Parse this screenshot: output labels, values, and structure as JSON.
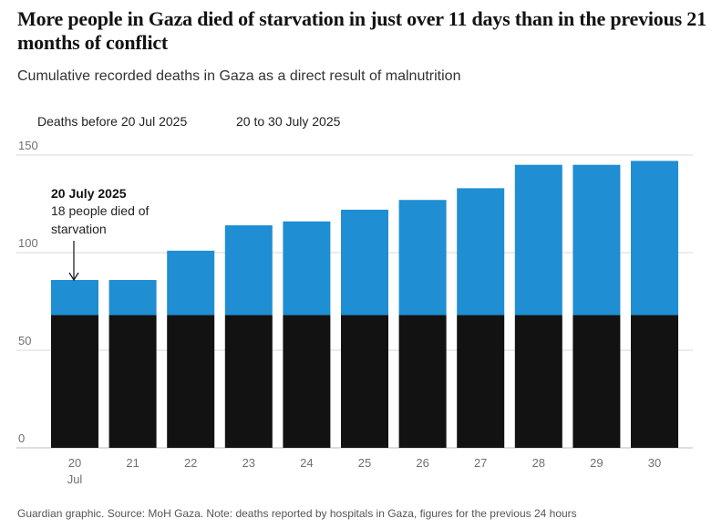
{
  "title": "More people in Gaza died of starvation in just over 11 days than in the previous 21 months of conflict",
  "subtitle": "Cumulative recorded deaths in Gaza as a direct result of malnutrition",
  "legend": {
    "before": "Deaths before 20 Jul 2025",
    "after": "20 to 30 July 2025"
  },
  "annotation": {
    "title": "20 July 2025",
    "line1": "18 people died of",
    "line2": "starvation"
  },
  "footer": "Guardian graphic. Source: MoH Gaza. Note: deaths reported by hospitals in Gaza, figures for the previous 24 hours",
  "colors": {
    "before": "#121212",
    "after": "#1f8ed3",
    "gridline": "#d9d9d9",
    "axis_text": "#707070"
  },
  "chart_data": {
    "type": "bar",
    "stacked": true,
    "categories": [
      "20",
      "21",
      "22",
      "23",
      "24",
      "25",
      "26",
      "27",
      "28",
      "29",
      "30"
    ],
    "category_sublabels": [
      "Jul",
      "",
      "",
      "",
      "",
      "",
      "",
      "",
      "",
      "",
      ""
    ],
    "series": [
      {
        "name": "Deaths before 20 Jul 2025",
        "values": [
          68,
          68,
          68,
          68,
          68,
          68,
          68,
          68,
          68,
          68,
          68
        ]
      },
      {
        "name": "20 to 30 July 2025",
        "values": [
          18,
          18,
          33,
          46,
          48,
          54,
          59,
          65,
          77,
          77,
          79
        ]
      }
    ],
    "ylim": [
      0,
      150
    ],
    "yticks": [
      0,
      50,
      100,
      150
    ],
    "xlabel": "",
    "ylabel": "",
    "grid": true,
    "legend_position": "top-left"
  }
}
